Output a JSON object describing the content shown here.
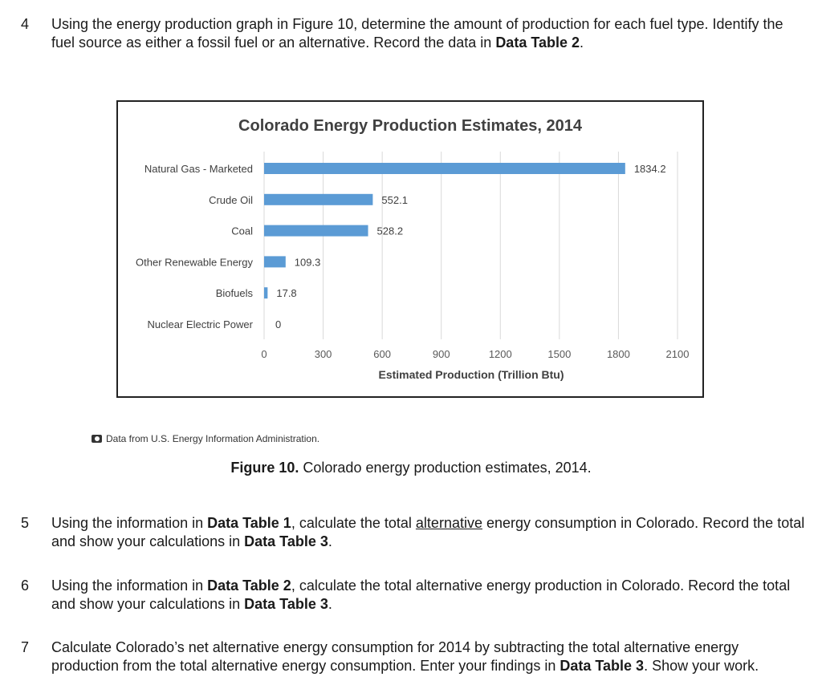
{
  "questions": [
    {
      "number": "4",
      "segments": [
        {
          "t": "Using the energy production graph in Figure 10, determine the amount of production for each fuel type. Identify the fuel source as either a fossil fuel or an alternative. Record the data in "
        },
        {
          "t": "Data Table 2",
          "b": true
        },
        {
          "t": "."
        }
      ]
    },
    {
      "number": "5",
      "segments": [
        {
          "t": "Using the information in "
        },
        {
          "t": "Data Table 1",
          "b": true
        },
        {
          "t": ", calculate the total "
        },
        {
          "t": "alternative",
          "u": true
        },
        {
          "t": " energy consumption in Colorado. Record the total and show your calculations in "
        },
        {
          "t": "Data Table 3",
          "b": true
        },
        {
          "t": "."
        }
      ]
    },
    {
      "number": "6",
      "segments": [
        {
          "t": "Using the information in "
        },
        {
          "t": "Data Table 2",
          "b": true
        },
        {
          "t": ", calculate the total alternative energy production in Colorado. Record the total and show your calculations in "
        },
        {
          "t": "Data Table 3",
          "b": true
        },
        {
          "t": "."
        }
      ]
    },
    {
      "number": "7",
      "segments": [
        {
          "t": "Calculate Colorado’s net alternative energy consumption for 2014 by subtracting the total alternative energy production from the total alternative energy consumption. Enter your findings in "
        },
        {
          "t": "Data Table 3",
          "b": true
        },
        {
          "t": ". Show your work."
        }
      ]
    }
  ],
  "figure": {
    "credit": "Data from U.S. Energy Information Administration.",
    "caption_label": "Figure 10.",
    "caption_text": " Colorado energy production estimates, 2014."
  },
  "chart_data": {
    "type": "bar",
    "orientation": "horizontal",
    "title": "Colorado Energy Production Estimates, 2014",
    "xlabel": "Estimated Production (Trillion Btu)",
    "ylabel": "",
    "categories": [
      "Natural Gas - Marketed",
      "Crude Oil",
      "Coal",
      "Other Renewable Energy",
      "Biofuels",
      "Nuclear Electric Power"
    ],
    "values": [
      1834.2,
      552.1,
      528.2,
      109.3,
      17.8,
      0
    ],
    "value_labels": [
      "1834.2",
      "552.1",
      "528.2",
      "109.3",
      "17.8",
      "0"
    ],
    "xlim": [
      0,
      2100
    ],
    "xticks": [
      0,
      300,
      600,
      900,
      1200,
      1500,
      1800,
      2100
    ],
    "grid": true,
    "bar_color": "#5b9bd5"
  }
}
